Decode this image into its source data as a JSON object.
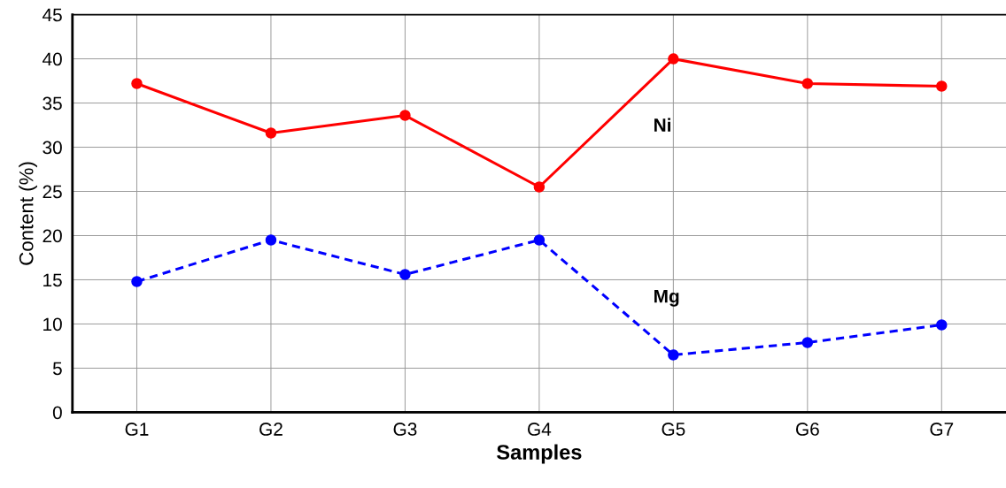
{
  "chart_data": {
    "type": "line",
    "xlabel": "Samples",
    "ylabel": "Content (%)",
    "categories": [
      "G1",
      "G2",
      "G3",
      "G4",
      "G5",
      "G6",
      "G7"
    ],
    "series": [
      {
        "name": "Ni",
        "color": "#ff0000",
        "line_style": "solid",
        "values": [
          37.2,
          31.6,
          33.6,
          25.5,
          40.0,
          37.2,
          36.9
        ]
      },
      {
        "name": "Mg",
        "color": "#0000ff",
        "line_style": "dashed",
        "values": [
          14.8,
          19.5,
          15.6,
          19.5,
          6.5,
          7.9,
          9.9
        ]
      }
    ],
    "ylim": [
      0,
      45
    ],
    "yticks": [
      0,
      5,
      10,
      15,
      20,
      25,
      30,
      35,
      40,
      45
    ],
    "grid": true,
    "marker": "circle",
    "legend": false
  }
}
